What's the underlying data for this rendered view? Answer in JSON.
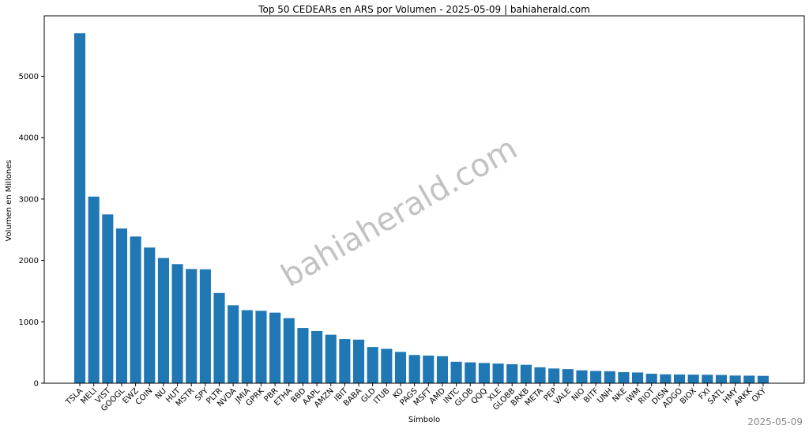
{
  "chart_data": {
    "type": "bar",
    "title": "Top 50 CEDEARs en ARS por Volumen - 2025-05-09 | bahiaherald.com",
    "xlabel": "Símbolo",
    "ylabel": "Volumen en Millones",
    "watermark": "bahiaherald.com",
    "footnote": "2025-05-09",
    "color": "#1f77b4",
    "categories": [
      "TSLA",
      "MELI",
      "VIST",
      "GOOGL",
      "EWZ",
      "COIN",
      "NU",
      "HUT",
      "MSTR",
      "SPY",
      "PLTR",
      "NVDA",
      "JMIA",
      "GPRK",
      "PBR",
      "ETHA",
      "BBD",
      "AAPL",
      "AMZN",
      "IBIT",
      "BABA",
      "GLD",
      "ITUB",
      "KO",
      "PAGS",
      "MSFT",
      "AMD",
      "INTC",
      "GLOB",
      "QQQ",
      "XLE",
      "GLOBB",
      "BRKB",
      "META",
      "PEP",
      "VALE",
      "NIO",
      "BITF",
      "UNH",
      "NKE",
      "IWM",
      "RIOT",
      "DISN",
      "ADGO",
      "BIOX",
      "FXI",
      "SATL",
      "HMY",
      "ARKK",
      "OXY"
    ],
    "values": [
      5700,
      3040,
      2750,
      2520,
      2390,
      2210,
      2040,
      1940,
      1860,
      1855,
      1470,
      1270,
      1190,
      1180,
      1150,
      1060,
      900,
      850,
      790,
      720,
      710,
      590,
      560,
      510,
      460,
      450,
      440,
      350,
      340,
      330,
      320,
      310,
      300,
      260,
      240,
      230,
      210,
      200,
      195,
      180,
      175,
      155,
      145,
      142,
      140,
      138,
      135,
      125,
      123,
      120
    ],
    "ylim": [
      0,
      5985
    ],
    "yticks": [
      0,
      1000,
      2000,
      3000,
      4000,
      5000
    ],
    "grid": false
  }
}
